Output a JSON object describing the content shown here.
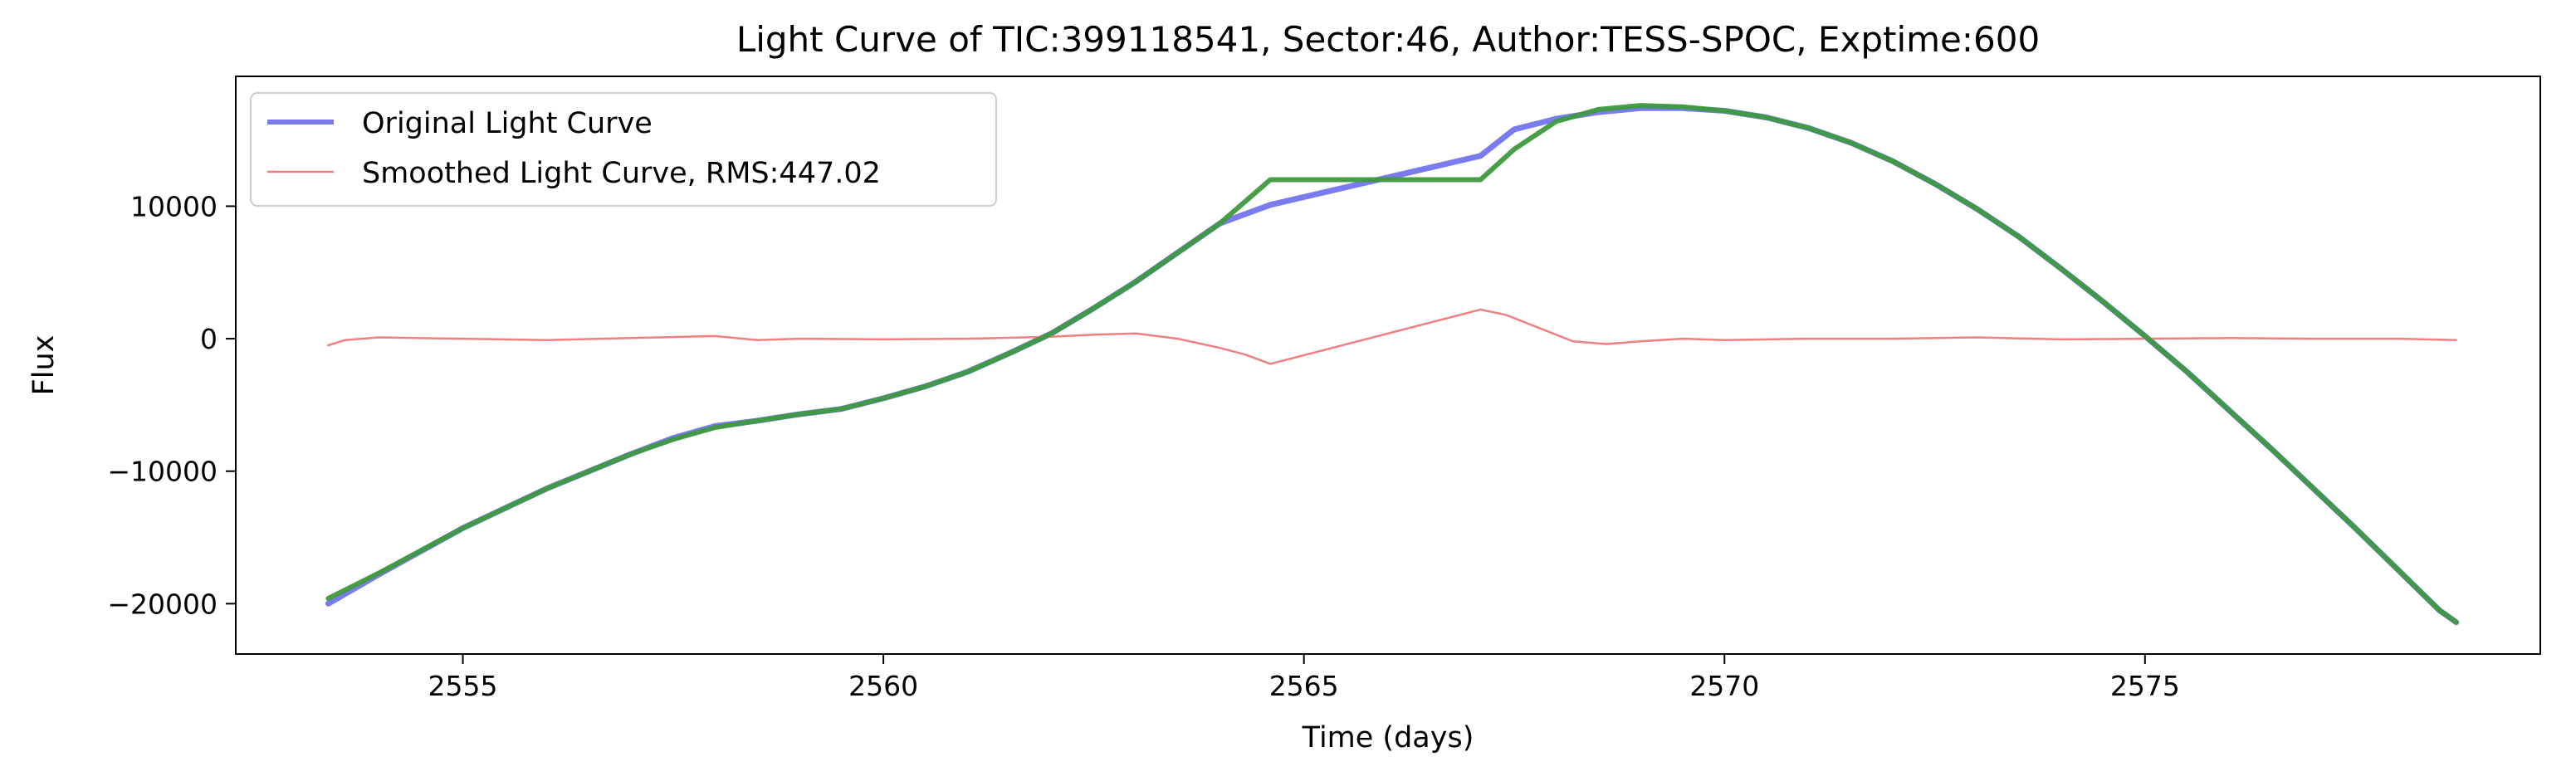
{
  "chart_data": {
    "type": "line",
    "title": "Light Curve of TIC:399118541, Sector:46, Author:TESS-SPOC, Exptime:600",
    "xlabel": "Time (days)",
    "ylabel": "Flux",
    "xlim": [
      2552.3,
      2579.7
    ],
    "ylim": [
      -23800,
      19800
    ],
    "xticks": [
      2555,
      2560,
      2565,
      2570,
      2575
    ],
    "yticks": [
      -20000,
      -10000,
      0,
      10000
    ],
    "xtick_labels": [
      "2555",
      "2560",
      "2565",
      "2570",
      "2575"
    ],
    "ytick_labels": [
      "−20000",
      "−10000",
      "0",
      "10000"
    ],
    "grid": false,
    "legend_position": "upper-left",
    "series": [
      {
        "name": "Original Light Curve",
        "color": "#7b7bf0",
        "x": [
          2553.4,
          2554.0,
          2555.0,
          2556.0,
          2557.0,
          2557.5,
          2558.0,
          2558.5,
          2559.0,
          2559.5,
          2560.0,
          2560.5,
          2561.0,
          2561.5,
          2562.0,
          2562.5,
          2563.0,
          2563.5,
          2564.0,
          2564.6,
          2567.1,
          2567.5,
          2568.0,
          2568.5,
          2569.0,
          2569.5,
          2570.0,
          2570.5,
          2571.0,
          2571.5,
          2572.0,
          2572.5,
          2573.0,
          2573.5,
          2574.0,
          2574.5,
          2575.0,
          2575.5,
          2576.0,
          2576.5,
          2577.0,
          2577.5,
          2578.0,
          2578.5,
          2578.7
        ],
        "y": [
          -20000,
          -17800,
          -14300,
          -11300,
          -8700,
          -7500,
          -6600,
          -6200,
          -5700,
          -5300,
          -4500,
          -3600,
          -2500,
          -1100,
          400,
          2300,
          4300,
          6500,
          8700,
          10100,
          13800,
          15800,
          16600,
          17100,
          17400,
          17400,
          17200,
          16700,
          15900,
          14800,
          13400,
          11700,
          9800,
          7700,
          5300,
          2800,
          200,
          -2500,
          -5400,
          -8300,
          -11300,
          -14300,
          -17400,
          -20500,
          -21400
        ]
      },
      {
        "name": "Smoothed Light Curve, RMS:447.02",
        "color": "#f08080",
        "x": [
          2553.4,
          2553.6,
          2554.0,
          2555.0,
          2556.0,
          2557.0,
          2558.0,
          2558.5,
          2559.0,
          2560.0,
          2561.0,
          2562.0,
          2562.5,
          2563.0,
          2563.5,
          2564.0,
          2564.3,
          2564.6,
          2567.1,
          2567.4,
          2567.8,
          2568.2,
          2568.6,
          2569.0,
          2569.5,
          2570.0,
          2571.0,
          2572.0,
          2573.0,
          2574.0,
          2575.0,
          2576.0,
          2577.0,
          2578.0,
          2578.7
        ],
        "y": [
          -500,
          -100,
          100,
          0,
          -100,
          50,
          200,
          -100,
          0,
          -50,
          0,
          150,
          300,
          400,
          0,
          -700,
          -1200,
          -1900,
          2200,
          1800,
          800,
          -200,
          -400,
          -200,
          0,
          -100,
          0,
          0,
          100,
          -50,
          0,
          50,
          0,
          0,
          -100
        ]
      },
      {
        "name": "",
        "color": "#3e9a3e",
        "x": [
          2553.4,
          2554.0,
          2555.0,
          2556.0,
          2557.0,
          2557.5,
          2558.0,
          2558.5,
          2559.0,
          2559.5,
          2560.0,
          2560.5,
          2561.0,
          2561.5,
          2562.0,
          2562.5,
          2563.0,
          2563.5,
          2564.0,
          2564.6,
          2567.1,
          2567.5,
          2568.0,
          2568.5,
          2569.0,
          2569.5,
          2570.0,
          2570.5,
          2571.0,
          2571.5,
          2572.0,
          2572.5,
          2573.0,
          2573.5,
          2574.0,
          2574.5,
          2575.0,
          2575.5,
          2576.0,
          2576.5,
          2577.0,
          2577.5,
          2578.0,
          2578.5,
          2578.7
        ],
        "y": [
          -19600,
          -17700,
          -14300,
          -11300,
          -8700,
          -7600,
          -6700,
          -6200,
          -5700,
          -5300,
          -4500,
          -3600,
          -2500,
          -1100,
          400,
          2300,
          4300,
          6500,
          8700,
          12000,
          12000,
          14300,
          16400,
          17300,
          17600,
          17500,
          17200,
          16700,
          15900,
          14800,
          13400,
          11700,
          9800,
          7700,
          5300,
          2800,
          200,
          -2500,
          -5400,
          -8300,
          -11300,
          -14300,
          -17400,
          -20500,
          -21400
        ]
      }
    ]
  }
}
